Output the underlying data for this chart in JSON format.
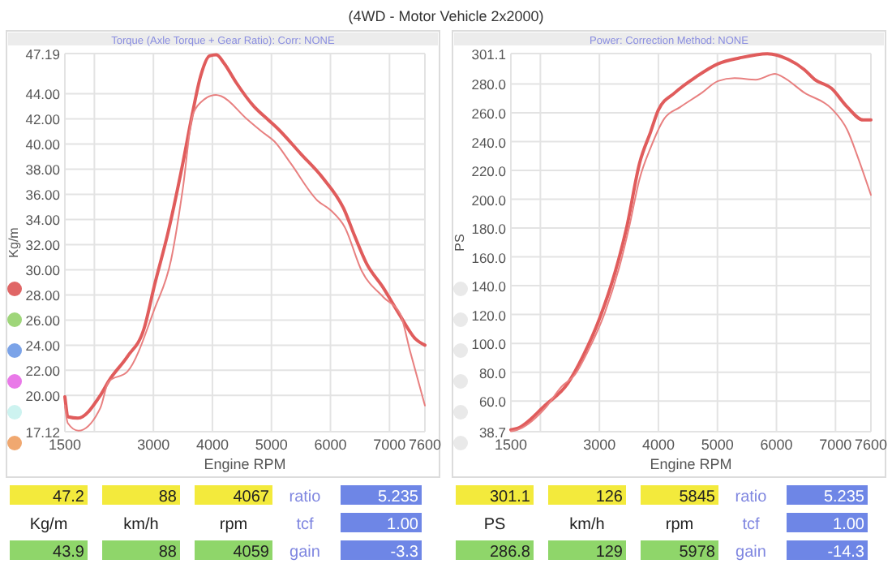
{
  "chart_data": [
    {
      "type": "line",
      "title": "(4WD - Motor Vehicle 2x2000)",
      "subtitle": "Torque (Axle Torque + Gear Ratio):      Corr: NONE",
      "xlabel": "Engine RPM",
      "ylabel": "Kg/m",
      "grid": true,
      "xlim": [
        1500,
        7600
      ],
      "xticks": [
        1500,
        {
          "value": 2000,
          "label": null
        },
        3000,
        4000,
        5000,
        6000,
        7000,
        7600
      ],
      "ylim": [
        17.12,
        47.19
      ],
      "yticks": [
        {
          "value": 17.12,
          "label": "17.12"
        },
        {
          "value": 20,
          "label": "20.00"
        },
        {
          "value": 22,
          "label": "22.00"
        },
        {
          "value": 24,
          "label": "24.00"
        },
        {
          "value": 26,
          "label": "26.00"
        },
        {
          "value": 28,
          "label": "28.00"
        },
        {
          "value": 30,
          "label": "30.00"
        },
        {
          "value": 32,
          "label": "32.00"
        },
        {
          "value": 34,
          "label": "34.00"
        },
        {
          "value": 36,
          "label": "36.00"
        },
        {
          "value": 38,
          "label": "38.00"
        },
        {
          "value": 40,
          "label": "40.00"
        },
        {
          "value": 42,
          "label": "42.00"
        },
        {
          "value": 44,
          "label": "44.00"
        },
        {
          "value": 47.19,
          "label": "47.19"
        }
      ],
      "series": [
        {
          "color": "#e05c5c",
          "x": [
            1500,
            1560,
            1720,
            2100,
            2250,
            2560,
            2840,
            3020,
            3250,
            3500,
            3660,
            3800,
            3950,
            4067,
            4200,
            4400,
            4700,
            4950,
            5090,
            5500,
            5870,
            6240,
            6400,
            6610,
            6890,
            7160,
            7440,
            7600
          ],
          "values": [
            19.9,
            18.3,
            18.2,
            20.0,
            21.2,
            23.1,
            25.3,
            28.8,
            33.0,
            38.5,
            42.4,
            45.4,
            47.0,
            47.1,
            46.4,
            44.9,
            43.0,
            41.9,
            41.3,
            39.2,
            37.3,
            34.7,
            32.8,
            30.5,
            28.6,
            26.5,
            24.5,
            24.0
          ]
        },
        {
          "color": "#e88080",
          "x": [
            1500,
            1550,
            1730,
            2100,
            2240,
            2560,
            3020,
            3300,
            3500,
            3660,
            3800,
            4059,
            4150,
            4580,
            4860,
            5050,
            5320,
            5780,
            6010,
            6240,
            6530,
            6900,
            7180,
            7350,
            7600
          ],
          "values": [
            19.2,
            17.8,
            17.2,
            19.0,
            21.1,
            21.9,
            26.9,
            30.8,
            36.5,
            42.2,
            43.3,
            43.9,
            43.8,
            42.0,
            40.9,
            40.2,
            38.5,
            35.5,
            34.7,
            33.4,
            29.9,
            27.8,
            26.5,
            23.5,
            19.2
          ]
        }
      ],
      "annotations": [
        "47.2",
        "88",
        "4067",
        "ratio",
        "5.235",
        "Kg/m",
        "km/h",
        "rpm",
        "tcf",
        "1.00",
        "43.9",
        "88",
        "4059",
        "gain",
        "-3.3"
      ]
    },
    {
      "type": "line",
      "subtitle": "Power:      Correction Method: NONE",
      "xlabel": "Engine RPM",
      "ylabel": "PS",
      "grid": true,
      "xlim": [
        1500,
        7600
      ],
      "xticks": [
        1500,
        {
          "value": 2000,
          "label": null
        },
        3000,
        4000,
        5000,
        6000,
        7000,
        7600
      ],
      "ylim": [
        38.7,
        301.1
      ],
      "yticks": [
        {
          "value": 38.7,
          "label": "38.7"
        },
        {
          "value": 60,
          "label": "60.0"
        },
        {
          "value": 80,
          "label": "80.0"
        },
        {
          "value": 100,
          "label": "100.0"
        },
        {
          "value": 120,
          "label": "120.0"
        },
        {
          "value": 140,
          "label": "140.0"
        },
        {
          "value": 160,
          "label": "160.0"
        },
        {
          "value": 180,
          "label": "180.0"
        },
        {
          "value": 200,
          "label": "200.0"
        },
        {
          "value": 220,
          "label": "220.0"
        },
        {
          "value": 240,
          "label": "240.0"
        },
        {
          "value": 260,
          "label": "260.0"
        },
        {
          "value": 280,
          "label": "280.0"
        },
        {
          "value": 301.1,
          "label": "301.1"
        }
      ],
      "series": [
        {
          "color": "#e05c5c",
          "x": [
            1500,
            1610,
            2080,
            2460,
            2720,
            3000,
            3270,
            3460,
            3680,
            3870,
            4000,
            4280,
            4640,
            5010,
            5370,
            5845,
            6200,
            6470,
            6650,
            6930,
            7200,
            7470,
            7600
          ],
          "values": [
            40,
            41,
            57,
            72,
            91,
            117,
            150,
            180,
            225,
            247,
            262,
            274,
            285,
            294,
            298,
            301,
            297,
            290,
            283,
            277,
            264,
            255,
            255
          ]
        },
        {
          "color": "#e88080",
          "x": [
            1500,
            1610,
            2080,
            2360,
            2580,
            2810,
            3090,
            3370,
            3500,
            3680,
            3870,
            4100,
            4370,
            4740,
            5010,
            5290,
            5650,
            5978,
            6100,
            6470,
            6930,
            7200,
            7380,
            7600
          ],
          "values": [
            39,
            40,
            55,
            70,
            78,
            95,
            121,
            158,
            180,
            214,
            236,
            256,
            264,
            274,
            282,
            284,
            283,
            287,
            285,
            274,
            263,
            248,
            229,
            203
          ]
        }
      ],
      "annotations": [
        "301.1",
        "126",
        "5845",
        "ratio",
        "5.235",
        "PS",
        "km/h",
        "rpm",
        "tcf",
        "1.00",
        "286.8",
        "129",
        "5978",
        "gain",
        "-14.3"
      ]
    }
  ]
}
